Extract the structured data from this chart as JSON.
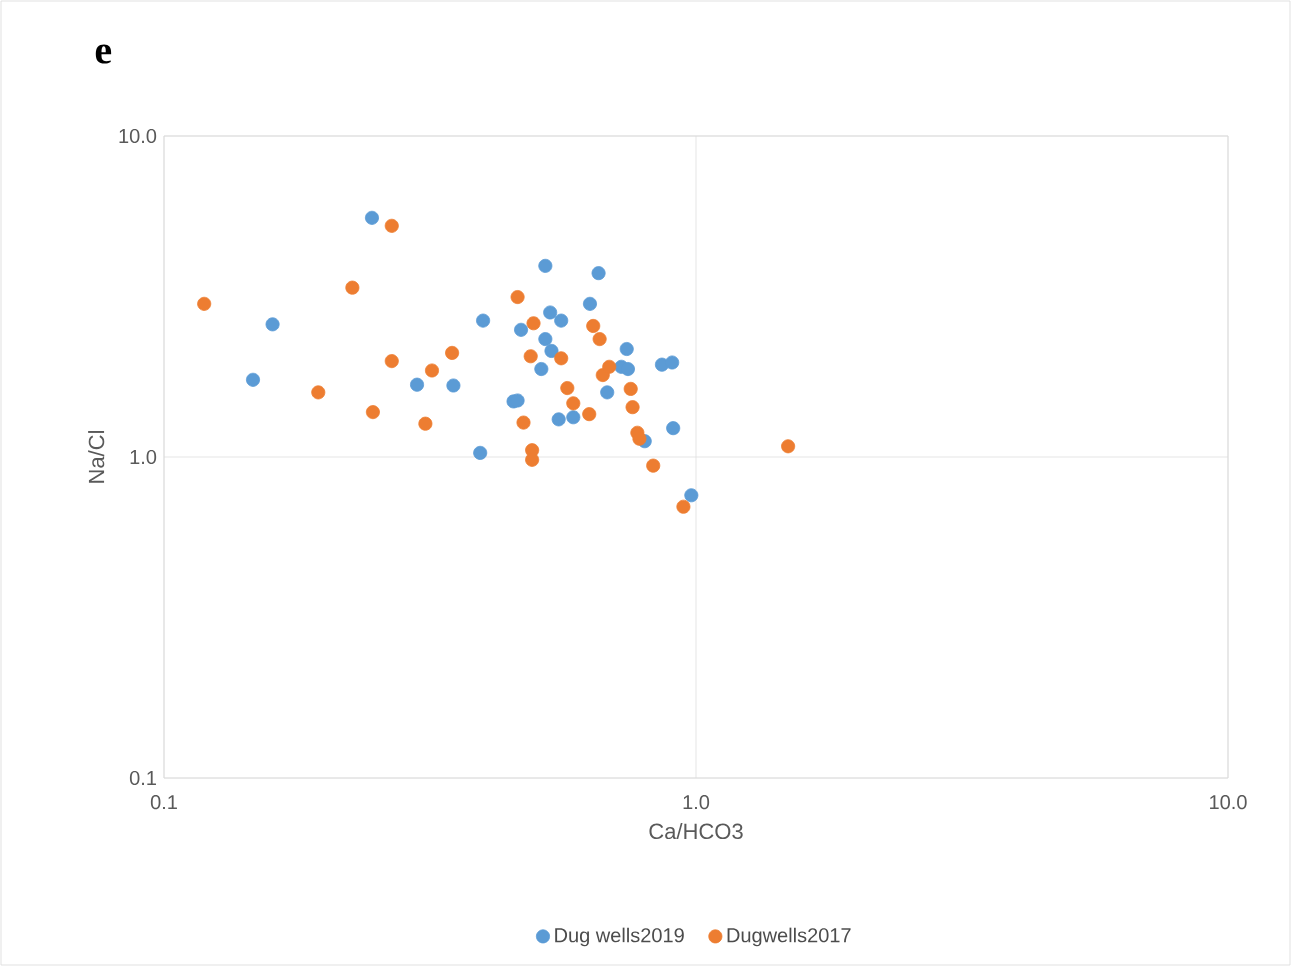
{
  "chart_data": {
    "type": "scatter",
    "title": "e",
    "xlabel": "Ca/HCO3",
    "ylabel": "Na/Cl",
    "log": "xy",
    "grid": true,
    "legend": "bottom",
    "xlim": [
      0.1,
      10
    ],
    "ylim": [
      0.1,
      10
    ],
    "xticks": [
      {
        "value": 0.1,
        "label": "0.1"
      },
      {
        "value": 1,
        "label": "1.0"
      },
      {
        "value": 10,
        "label": "10.0"
      }
    ],
    "yticks": [
      {
        "value": 0.1,
        "label": "0.1"
      },
      {
        "value": 1,
        "label": "1.0"
      },
      {
        "value": 10,
        "label": "10.0"
      }
    ],
    "series": [
      {
        "name": "Dug wells2019",
        "color": "#5b9bd5",
        "x": [
          0.246,
          0.16,
          0.147,
          0.299,
          0.35,
          0.398,
          0.393,
          0.454,
          0.462,
          0.469,
          0.521,
          0.532,
          0.558,
          0.521,
          0.535,
          0.512,
          0.552,
          0.588,
          0.632,
          0.656,
          0.681,
          0.741,
          0.724,
          0.745,
          0.863,
          0.902,
          0.906,
          0.801,
          0.98
        ],
        "values": [
          5.56,
          2.59,
          1.74,
          1.68,
          1.67,
          2.66,
          1.03,
          1.49,
          1.5,
          2.49,
          3.94,
          2.82,
          2.66,
          2.33,
          2.14,
          1.88,
          1.31,
          1.33,
          3.0,
          3.74,
          1.59,
          2.17,
          1.91,
          1.88,
          1.94,
          1.97,
          1.23,
          1.12,
          0.76
        ]
      },
      {
        "name": "Dugwells2017",
        "color": "#ed7d31",
        "x": [
          0.119,
          0.268,
          0.226,
          0.268,
          0.195,
          0.247,
          0.319,
          0.348,
          0.31,
          0.462,
          0.495,
          0.489,
          0.474,
          0.492,
          0.492,
          0.558,
          0.573,
          0.588,
          0.63,
          0.641,
          0.659,
          0.668,
          0.687,
          0.754,
          0.76,
          0.776,
          0.783,
          0.831,
          0.947,
          1.49
        ],
        "values": [
          3.0,
          5.25,
          3.37,
          1.99,
          1.59,
          1.38,
          1.86,
          2.11,
          1.27,
          3.15,
          2.61,
          2.06,
          1.28,
          1.05,
          0.98,
          2.03,
          1.64,
          1.47,
          1.36,
          2.56,
          2.33,
          1.8,
          1.91,
          1.63,
          1.43,
          1.19,
          1.14,
          0.94,
          0.7,
          1.08
        ]
      }
    ]
  }
}
